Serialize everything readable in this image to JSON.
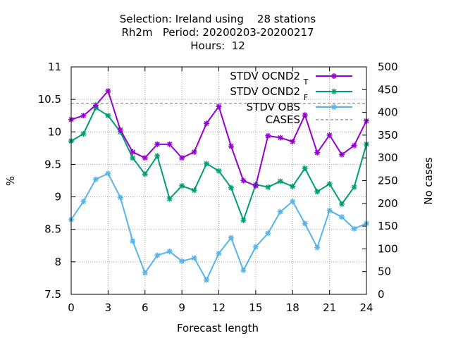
{
  "chart_data": {
    "type": "line",
    "title": [
      "Selection: Ireland using    28 stations",
      "Rh2m   Period: 20200203-20200217",
      "Hours:  12"
    ],
    "xlabel": "Forecast length",
    "ylabel": "%",
    "y2label": "No cases",
    "xlim": [
      0,
      24
    ],
    "ylim": [
      7.5,
      11
    ],
    "y2lim": [
      0,
      500
    ],
    "xticks": [
      "0",
      "3",
      "6",
      "9",
      "12",
      "15",
      "18",
      "21",
      "24"
    ],
    "yticks": [
      "7.5",
      "8",
      "8.5",
      "9",
      "9.5",
      "10",
      "10.5",
      "11"
    ],
    "y2ticks": [
      "0",
      "50",
      "100",
      "150",
      "200",
      "250",
      "300",
      "350",
      "400",
      "450",
      "500"
    ],
    "grid": true,
    "legend_position": "top-right",
    "x": [
      0,
      1,
      2,
      3,
      4,
      5,
      6,
      7,
      8,
      9,
      10,
      11,
      12,
      13,
      14,
      15,
      16,
      17,
      18,
      19,
      20,
      21,
      22,
      23,
      24
    ],
    "series": [
      {
        "name": "STDV OCND2",
        "subscript": "T",
        "axis": "left",
        "color": "#9400d3",
        "values": [
          10.19,
          10.25,
          10.41,
          10.63,
          10.03,
          9.69,
          9.6,
          9.81,
          9.81,
          9.6,
          9.69,
          10.13,
          10.39,
          9.78,
          9.25,
          9.17,
          9.94,
          9.91,
          9.85,
          10.26,
          9.68,
          9.95,
          9.65,
          9.79,
          10.17
        ]
      },
      {
        "name": "STDV OCND2",
        "subscript": "F",
        "axis": "left",
        "color": "#009e73",
        "values": [
          9.86,
          9.97,
          10.37,
          10.25,
          10.0,
          9.6,
          9.35,
          9.63,
          8.97,
          9.17,
          9.1,
          9.51,
          9.4,
          9.14,
          8.64,
          9.19,
          9.15,
          9.24,
          9.16,
          9.44,
          9.08,
          9.2,
          8.89,
          9.15,
          9.81
        ]
      },
      {
        "name": "STDV OBS",
        "axis": "left",
        "color": "#56b4e9",
        "values": [
          8.65,
          8.93,
          9.27,
          9.36,
          8.99,
          8.32,
          7.83,
          8.1,
          8.16,
          8.01,
          8.06,
          7.72,
          8.13,
          8.37,
          7.87,
          8.23,
          8.44,
          8.77,
          8.93,
          8.59,
          8.22,
          8.79,
          8.69,
          8.51,
          8.59
        ]
      },
      {
        "name": "CASES",
        "axis": "right",
        "color": "#808080",
        "dashed": true,
        "values": [
          420,
          420,
          420,
          420,
          420,
          420,
          420,
          420,
          420,
          420,
          420,
          420,
          420,
          420,
          420,
          420,
          420,
          420,
          420,
          420,
          420,
          420,
          420,
          420,
          420
        ]
      }
    ]
  }
}
